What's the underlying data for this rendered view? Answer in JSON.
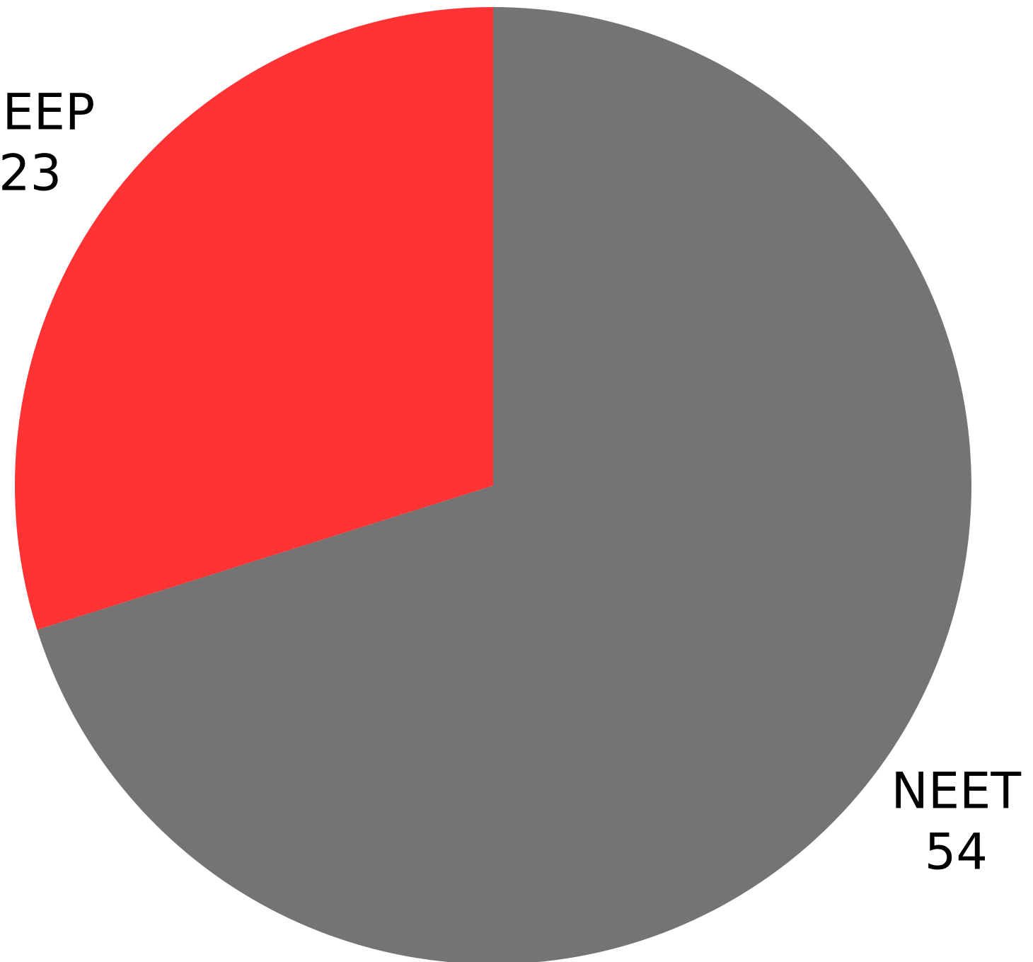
{
  "chart_data": {
    "type": "pie",
    "categories": [
      "NEET",
      "NEEP"
    ],
    "values": [
      54,
      23
    ],
    "colors": [
      "#747474",
      "#ff3333"
    ]
  }
}
